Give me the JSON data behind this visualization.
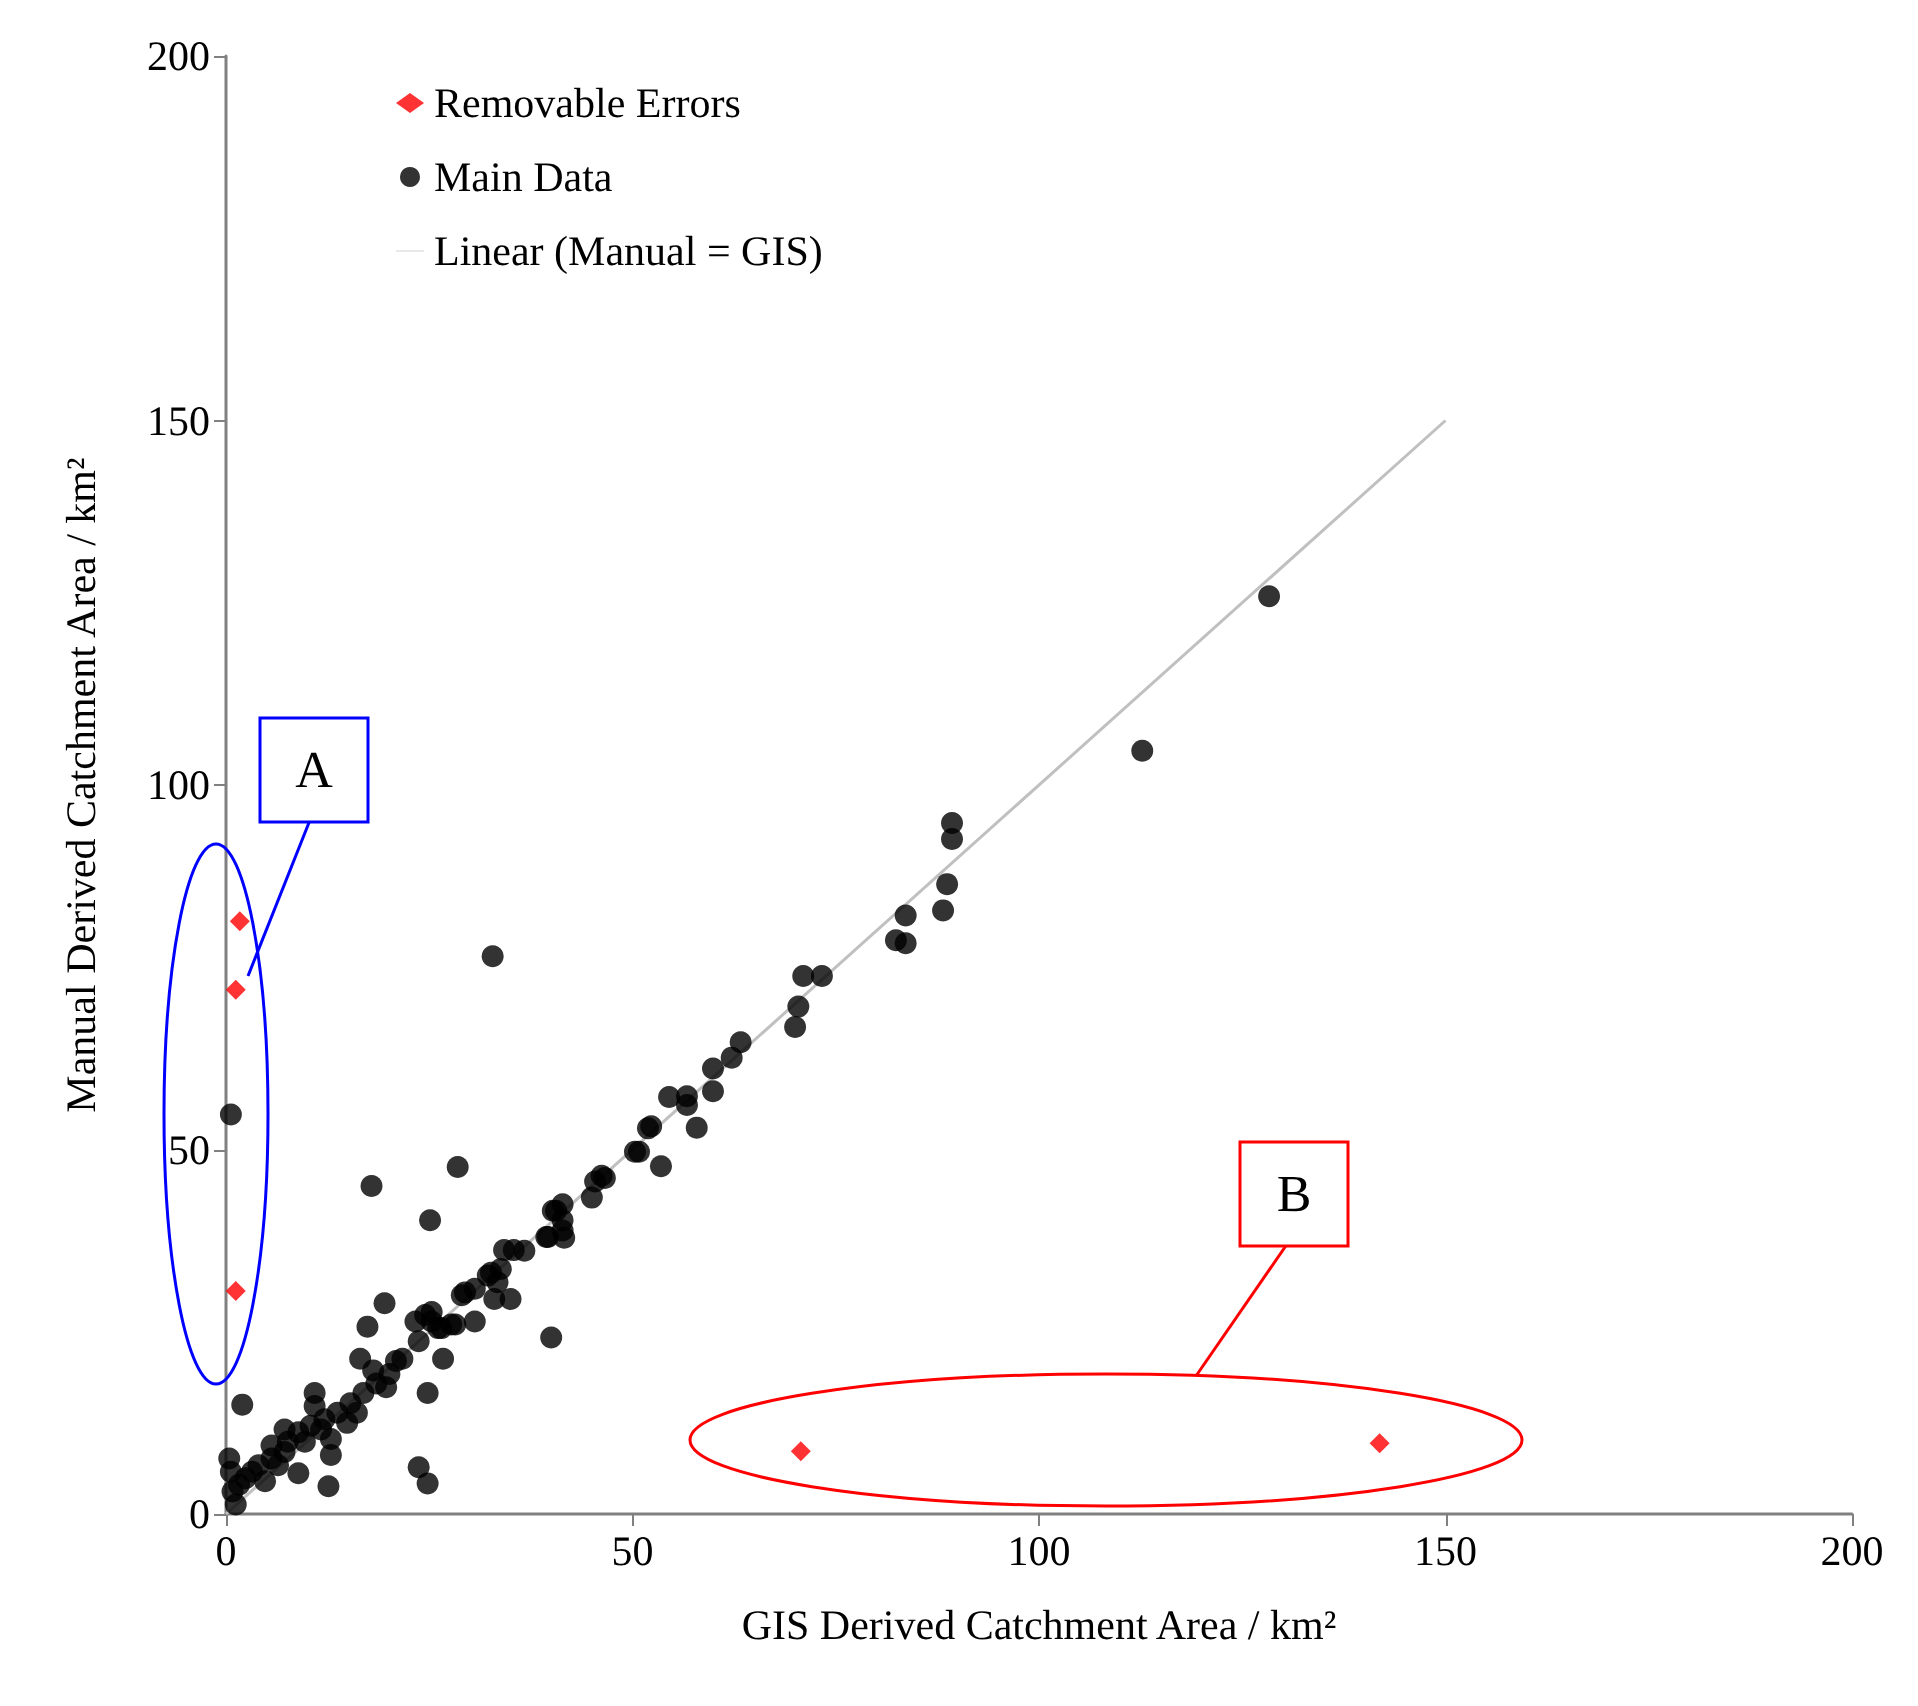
{
  "chart_data": {
    "type": "scatter",
    "xlabel": "GIS Derived Catchment Area / km²",
    "ylabel": "Manual Derived Catchment Area / km²",
    "xlim": [
      0,
      200
    ],
    "xticks": [
      0,
      50,
      100,
      150,
      200
    ],
    "ylim": [
      0,
      200
    ],
    "yticks": [
      0,
      50,
      100,
      150,
      200
    ],
    "grid": false,
    "legend": "top left",
    "annotations": [
      "A",
      "B"
    ],
    "series": [
      {
        "name": "Removable Errors",
        "color": "#ff0000",
        "marker": "diamond",
        "x": [
          1.7,
          1.2,
          1.2,
          70.7,
          141.9
        ],
        "values": [
          81.3,
          71.9,
          30.6,
          8.6,
          9.7
        ]
      },
      {
        "name": "Main Data",
        "color": "#000000",
        "marker": "circle",
        "x": [
          0.6,
          17.9,
          28.5,
          25.1,
          19.5,
          17.4,
          40.0,
          16.5,
          10.9,
          2.0,
          24.8,
          26.7,
          21.7,
          20.1,
          18.5,
          16.9,
          15.3,
          13.7,
          12.1,
          10.4,
          8.9,
          7.2,
          7.6,
          9.7,
          12.9,
          5.6,
          5.6,
          4.0,
          2.4,
          0.8,
          1.2,
          0.4,
          0.6,
          8.9,
          12.6,
          23.7,
          24.8,
          12.9,
          16.1,
          18.1,
          14.9,
          11.7,
          10.9,
          7.2,
          3.2,
          1.6,
          4.8,
          6.4,
          20.9,
          19.7,
          23.3,
          24.5,
          25.3,
          26.5,
          28.2,
          30.6,
          29.0,
          30.6,
          33.0,
          35.0,
          32.2,
          33.8,
          35.4,
          39.4,
          41.4,
          40.6,
          45.4,
          50.3,
          46.6,
          32.8,
          53.5,
          45.0,
          40.2,
          41.4,
          41.4,
          39.6,
          41.6,
          34.2,
          36.7,
          32.6,
          33.4,
          29.4,
          25.3,
          26.1,
          27.7,
          23.7,
          46.2,
          50.8,
          51.9,
          52.3,
          54.5,
          56.7,
          56.7,
          57.9,
          59.9,
          59.9,
          62.2,
          63.3,
          70.0,
          70.4,
          71.0,
          73.3,
          82.4,
          83.6,
          83.6,
          88.2,
          88.7,
          89.3,
          89.3,
          112.7,
          128.3
        ],
        "values": [
          54.8,
          45.0,
          47.6,
          40.3,
          28.9,
          25.7,
          24.2,
          21.3,
          16.6,
          15.0,
          16.6,
          21.3,
          21.3,
          19.2,
          17.9,
          16.6,
          15.2,
          13.9,
          13.0,
          12.1,
          11.2,
          11.6,
          9.9,
          9.9,
          10.3,
          9.4,
          7.6,
          6.7,
          4.9,
          3.1,
          1.3,
          7.6,
          5.8,
          5.6,
          3.8,
          6.4,
          4.2,
          8.1,
          13.9,
          19.7,
          12.5,
          11.6,
          14.8,
          8.5,
          5.8,
          4.0,
          4.5,
          6.7,
          21.0,
          17.4,
          26.4,
          27.3,
          27.7,
          25.5,
          26.0,
          30.9,
          30.0,
          26.4,
          29.5,
          29.5,
          32.7,
          33.6,
          36.2,
          38.0,
          38.9,
          41.6,
          45.6,
          49.7,
          46.1,
          76.5,
          47.7,
          43.4,
          41.6,
          42.5,
          40.3,
          38.0,
          37.9,
          36.2,
          36.1,
          33.1,
          31.8,
          30.4,
          26.4,
          25.5,
          26.0,
          23.7,
          46.4,
          49.7,
          52.9,
          53.2,
          57.2,
          57.3,
          56.1,
          53.0,
          61.1,
          58.0,
          62.6,
          64.7,
          66.8,
          69.6,
          73.8,
          73.8,
          78.7,
          78.3,
          82.1,
          82.8,
          86.4,
          92.6,
          94.8,
          104.7,
          125.9
        ]
      },
      {
        "name": "Linear (Manual = GIS)",
        "type": "line",
        "color": "#c0c0c0",
        "marker": "none",
        "line_style": "solid",
        "x": [
          0,
          150
        ],
        "values": [
          0,
          150
        ]
      }
    ]
  }
}
